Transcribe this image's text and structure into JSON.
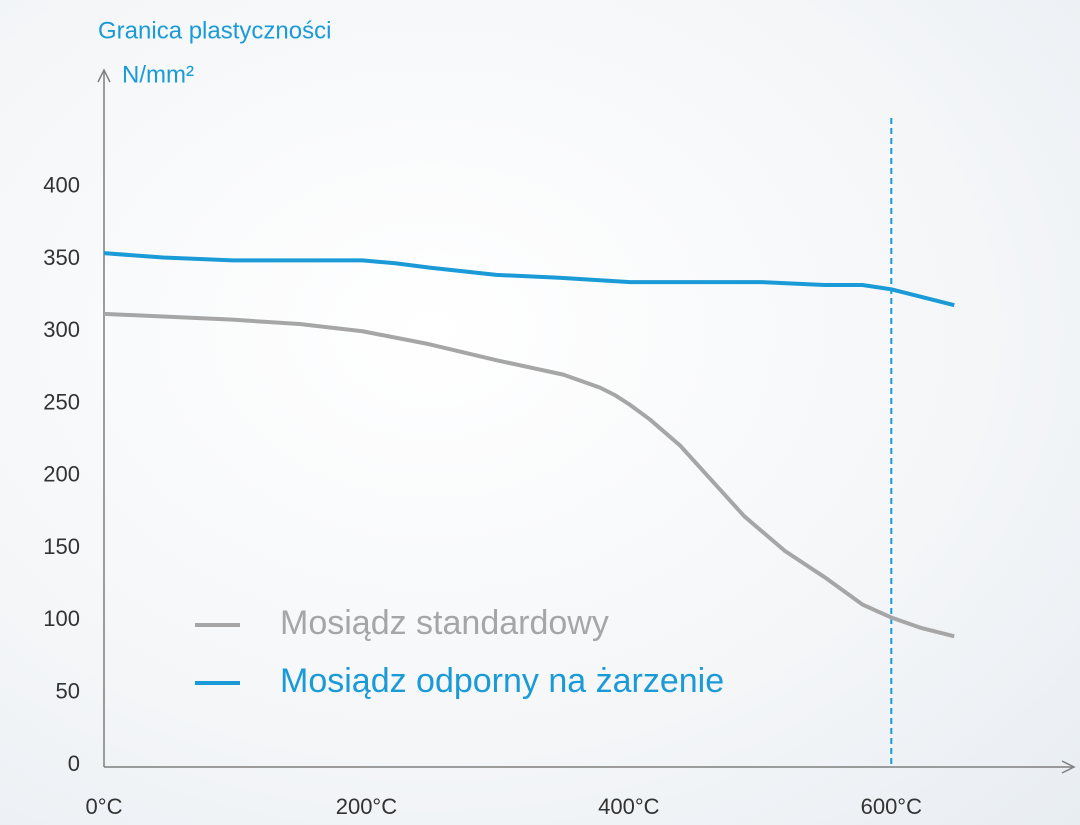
{
  "chart_data": {
    "type": "line",
    "y_label": "Granica plastyczności",
    "y_unit": "N/mm²",
    "xlim": [
      0,
      740
    ],
    "ylim": [
      0,
      480
    ],
    "xticks": [
      {
        "value": 0,
        "label": "0°C"
      },
      {
        "value": 200,
        "label": "200°C"
      },
      {
        "value": 400,
        "label": "400°C"
      },
      {
        "value": 600,
        "label": "600°C"
      }
    ],
    "yticks": [
      0,
      50,
      100,
      150,
      200,
      250,
      300,
      350,
      400
    ],
    "vline": 600,
    "vline_color": "#1a9ad6",
    "legend": "left",
    "series": [
      {
        "name": "Mosiądz standardowy",
        "color": "#a6a6a6",
        "x": [
          0,
          98,
          149,
          197,
          248,
          299,
          350,
          378,
          389,
          401,
          416,
          439,
          454,
          488,
          519,
          549,
          578,
          600,
          622,
          648
        ],
        "values": [
          312,
          308,
          305,
          300,
          291,
          280,
          270,
          261,
          256,
          249,
          239,
          221,
          206,
          172,
          148,
          130,
          111,
          102,
          95,
          89
        ]
      },
      {
        "name": "Mosiądz odporny na żarzenie",
        "color": "#1a9ad6",
        "x": [
          0,
          45,
          98,
          149,
          197,
          222,
          248,
          299,
          347,
          401,
          501,
          549,
          578,
          600,
          648
        ],
        "values": [
          354,
          351,
          349,
          349,
          349,
          347,
          344,
          339,
          337,
          334,
          334,
          332,
          332,
          329,
          318
        ]
      }
    ]
  }
}
